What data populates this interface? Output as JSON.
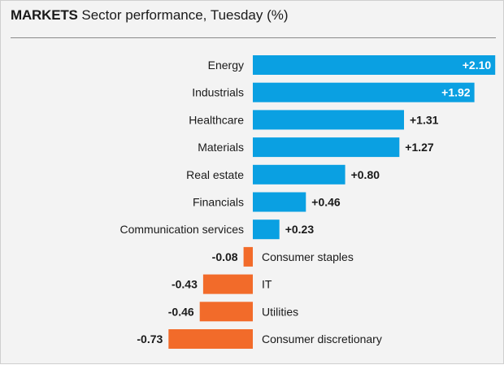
{
  "header": {
    "kicker": "MARKETS",
    "title": "Sector performance, Tuesday (%)"
  },
  "colors": {
    "positive": "#0aa0e2",
    "negative": "#f26b2a"
  },
  "chart_data": {
    "type": "bar",
    "orientation": "horizontal",
    "title": "MARKETS Sector performance, Tuesday (%)",
    "categories": [
      "Energy",
      "Industrials",
      "Healthcare",
      "Materials",
      "Real estate",
      "Financials",
      "Communication services",
      "Consumer staples",
      "IT",
      "Utilities",
      "Consumer discretionary"
    ],
    "values": [
      2.1,
      1.92,
      1.31,
      1.27,
      0.8,
      0.46,
      0.23,
      -0.08,
      -0.43,
      -0.46,
      -0.73
    ],
    "labels": [
      "+2.10",
      "+1.92",
      "+1.31",
      "+1.27",
      "+0.80",
      "+0.46",
      "+0.23",
      "-0.08",
      "-0.43",
      "-0.46",
      "-0.73"
    ],
    "grid": false,
    "legend": "none"
  }
}
